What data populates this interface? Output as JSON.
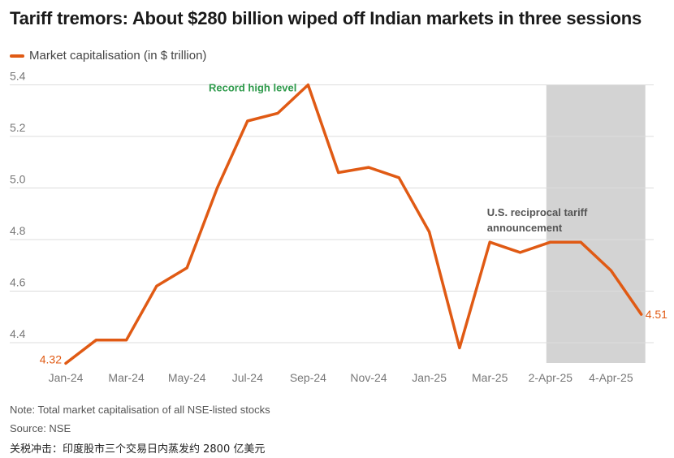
{
  "title": "Tariff tremors: About $280 billion wiped off Indian markets in three sessions",
  "footer": {
    "note": "Note: Total market capitalisation of all NSE-listed stocks",
    "source": "Source: NSE",
    "caption": "关税冲击：印度股市三个交易日内蒸发约 2800 亿美元"
  },
  "colors": {
    "line": "#e05a14",
    "shade": "#d3d3d3",
    "grid": "#dcdcdc",
    "green": "#2e9a4b"
  },
  "chart_data": {
    "type": "line",
    "series": [
      {
        "name": "Market capitalisation (in $ trillion)",
        "values": [
          4.32,
          4.41,
          4.41,
          4.62,
          4.69,
          5.0,
          5.26,
          5.29,
          5.4,
          5.06,
          5.08,
          5.04,
          4.83,
          4.38,
          4.79,
          4.75,
          4.79,
          4.79,
          4.68,
          4.51
        ]
      }
    ],
    "x_tick_labels": [
      "Jan-24",
      "Mar-24",
      "May-24",
      "Jul-24",
      "Sep-24",
      "Nov-24",
      "Jan-25",
      "Mar-25",
      "2-Apr-25",
      "4-Apr-25"
    ],
    "x_tick_indices": [
      0,
      2,
      4,
      6,
      8,
      10,
      12,
      14,
      16,
      18
    ],
    "y_ticks": [
      4.4,
      4.6,
      4.8,
      5.0,
      5.2,
      5.4
    ],
    "y_tick_labels": [
      "4.4",
      "4.6",
      "4.8",
      "5.0",
      "5.2",
      "5.4"
    ],
    "ylim": [
      4.32,
      5.4
    ],
    "shaded_range": [
      16,
      19
    ],
    "annotations": [
      {
        "text": "Record high level",
        "index": 8,
        "style": "green"
      },
      {
        "text_lines": [
          "U.S. reciprocal tariff",
          "announcement"
        ],
        "index": 16,
        "style": "dark"
      }
    ],
    "data_labels": [
      {
        "index": 0,
        "text": "4.32"
      },
      {
        "index": 19,
        "text": "4.51"
      }
    ],
    "legend_position": "top-left"
  }
}
